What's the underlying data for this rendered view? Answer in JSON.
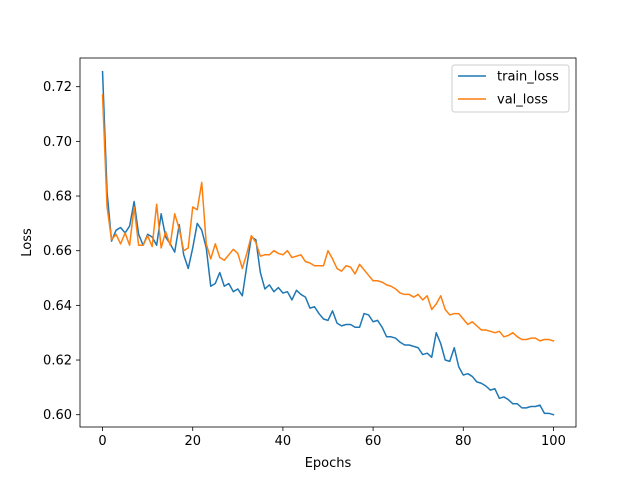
{
  "chart_data": {
    "type": "line",
    "title": "",
    "xlabel": "Epochs",
    "ylabel": "Loss",
    "xlim": [
      -5,
      105
    ],
    "ylim": [
      0.5955,
      0.7305
    ],
    "xticks": [
      0,
      20,
      40,
      60,
      80,
      100
    ],
    "yticks": [
      0.6,
      0.62,
      0.64,
      0.66,
      0.68,
      0.7,
      0.72
    ],
    "ytick_labels": [
      "0.60",
      "0.62",
      "0.64",
      "0.66",
      "0.68",
      "0.70",
      "0.72"
    ],
    "grid": false,
    "legend_position": "upper right",
    "x": [
      0,
      1,
      2,
      3,
      4,
      5,
      6,
      7,
      8,
      9,
      10,
      11,
      12,
      13,
      14,
      15,
      16,
      17,
      18,
      19,
      20,
      21,
      22,
      23,
      24,
      25,
      26,
      27,
      28,
      29,
      30,
      31,
      32,
      33,
      34,
      35,
      36,
      37,
      38,
      39,
      40,
      41,
      42,
      43,
      44,
      45,
      46,
      47,
      48,
      49,
      50,
      51,
      52,
      53,
      54,
      55,
      56,
      57,
      58,
      59,
      60,
      61,
      62,
      63,
      64,
      65,
      66,
      67,
      68,
      69,
      70,
      71,
      72,
      73,
      74,
      75,
      76,
      77,
      78,
      79,
      80,
      81,
      82,
      83,
      84,
      85,
      86,
      87,
      88,
      89,
      90,
      91,
      92,
      93,
      94,
      95,
      96,
      97,
      98,
      99,
      100
    ],
    "series": [
      {
        "name": "train_loss",
        "color": "#1f77b4",
        "values": [
          0.7255,
          0.6815,
          0.6635,
          0.6675,
          0.6685,
          0.6665,
          0.669,
          0.678,
          0.666,
          0.662,
          0.666,
          0.665,
          0.662,
          0.6735,
          0.665,
          0.6625,
          0.6595,
          0.6695,
          0.6585,
          0.6535,
          0.661,
          0.67,
          0.6675,
          0.661,
          0.647,
          0.648,
          0.652,
          0.647,
          0.648,
          0.645,
          0.646,
          0.6435,
          0.6545,
          0.665,
          0.664,
          0.652,
          0.646,
          0.6475,
          0.645,
          0.6465,
          0.6445,
          0.645,
          0.642,
          0.6455,
          0.644,
          0.643,
          0.639,
          0.6395,
          0.637,
          0.635,
          0.6345,
          0.638,
          0.6335,
          0.6325,
          0.633,
          0.633,
          0.632,
          0.632,
          0.637,
          0.6365,
          0.634,
          0.6345,
          0.632,
          0.6285,
          0.6285,
          0.628,
          0.6265,
          0.6255,
          0.6255,
          0.625,
          0.6245,
          0.622,
          0.6225,
          0.621,
          0.63,
          0.626,
          0.62,
          0.6195,
          0.6245,
          0.6175,
          0.6145,
          0.615,
          0.614,
          0.612,
          0.6115,
          0.6105,
          0.609,
          0.6095,
          0.606,
          0.6065,
          0.6055,
          0.604,
          0.604,
          0.6025,
          0.6025,
          0.603,
          0.603,
          0.6035,
          0.6005,
          0.6005,
          0.6
        ]
      },
      {
        "name": "val_loss",
        "color": "#ff7f0e",
        "values": [
          0.717,
          0.676,
          0.664,
          0.666,
          0.6625,
          0.6665,
          0.662,
          0.676,
          0.662,
          0.662,
          0.6655,
          0.6615,
          0.677,
          0.661,
          0.667,
          0.662,
          0.6735,
          0.668,
          0.66,
          0.661,
          0.676,
          0.675,
          0.685,
          0.6625,
          0.657,
          0.6625,
          0.6575,
          0.6565,
          0.6585,
          0.6605,
          0.659,
          0.6535,
          0.659,
          0.6655,
          0.663,
          0.658,
          0.6585,
          0.6585,
          0.66,
          0.659,
          0.6585,
          0.66,
          0.6575,
          0.658,
          0.6585,
          0.656,
          0.6555,
          0.6545,
          0.6545,
          0.6545,
          0.66,
          0.657,
          0.6535,
          0.6525,
          0.6545,
          0.654,
          0.6515,
          0.655,
          0.653,
          0.651,
          0.649,
          0.649,
          0.6485,
          0.6475,
          0.647,
          0.646,
          0.6445,
          0.644,
          0.644,
          0.643,
          0.644,
          0.642,
          0.6435,
          0.6385,
          0.6405,
          0.6435,
          0.6385,
          0.6365,
          0.637,
          0.637,
          0.635,
          0.633,
          0.634,
          0.6325,
          0.631,
          0.631,
          0.6305,
          0.63,
          0.6305,
          0.6285,
          0.629,
          0.63,
          0.6285,
          0.6275,
          0.6275,
          0.628,
          0.628,
          0.627,
          0.6275,
          0.6275,
          0.627
        ]
      }
    ]
  }
}
